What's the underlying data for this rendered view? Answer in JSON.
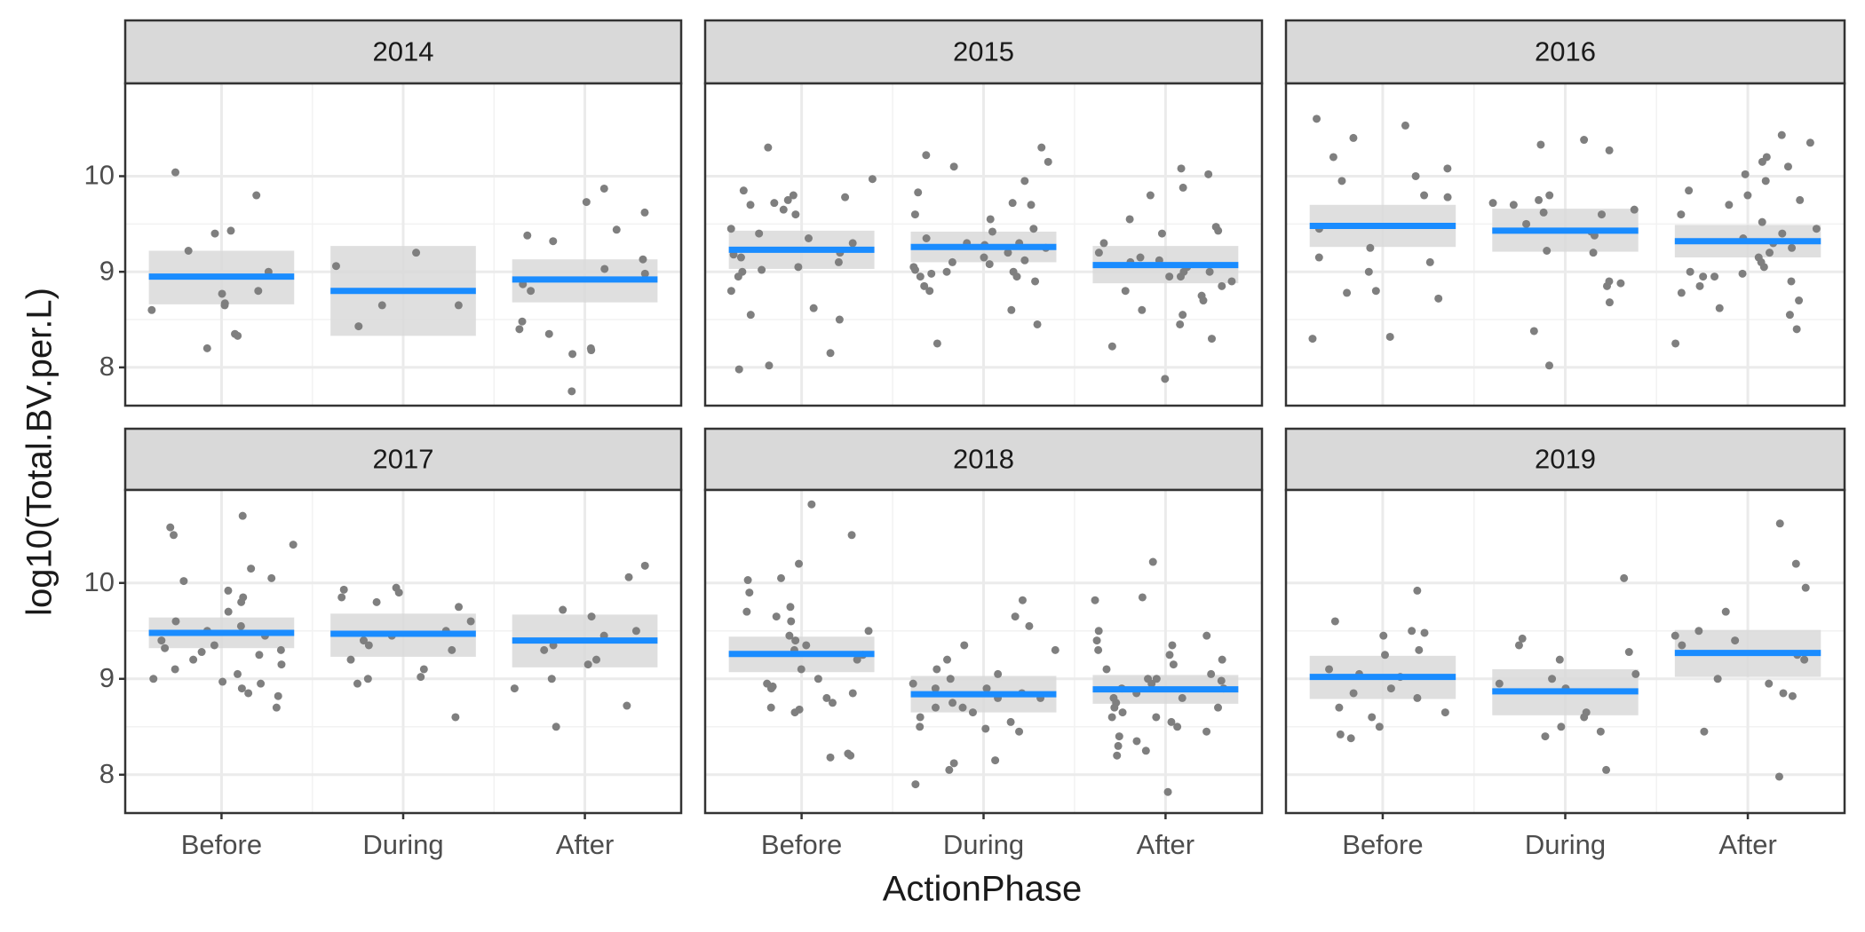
{
  "axes": {
    "xlabel": "ActionPhase",
    "ylabel": "log10(Total.BV.per.L)",
    "categories": [
      "Before",
      "During",
      "After"
    ],
    "ylim": [
      7.6,
      10.97
    ],
    "yticks": [
      8,
      9,
      10
    ],
    "point_color": "#7f7f7f",
    "line_color": "#1a8cff",
    "band_color": "#d9d9d9",
    "grid": true
  },
  "chart_data": [
    {
      "type": "scatter",
      "title": "2014",
      "points": [
        [
          10.04,
          9.8,
          9.43,
          9.4,
          9.22,
          9.0,
          8.8,
          8.77,
          8.67,
          8.65,
          8.6,
          8.35,
          8.33,
          8.2
        ],
        [
          9.2,
          9.06,
          8.65,
          8.65,
          8.43
        ],
        [
          9.87,
          9.73,
          9.62,
          9.44,
          9.38,
          9.32,
          9.13,
          9.03,
          8.98,
          8.87,
          8.8,
          8.48,
          8.4,
          8.35,
          8.2,
          8.18,
          8.14,
          7.75
        ]
      ],
      "means": [
        8.95,
        8.8,
        8.92
      ],
      "ci_low": [
        8.66,
        8.33,
        8.68
      ],
      "ci_high": [
        9.22,
        9.27,
        9.13
      ]
    },
    {
      "type": "scatter",
      "title": "2015",
      "points": [
        [
          10.3,
          9.97,
          9.85,
          9.8,
          9.78,
          9.75,
          9.72,
          9.7,
          9.65,
          9.6,
          9.45,
          9.4,
          9.35,
          9.3,
          9.2,
          9.18,
          9.15,
          9.1,
          9.05,
          9.02,
          9.0,
          8.95,
          8.8,
          8.62,
          8.55,
          8.5,
          8.15,
          8.02,
          7.98
        ],
        [
          10.3,
          10.22,
          10.15,
          10.1,
          9.83,
          9.72,
          9.7,
          9.6,
          9.55,
          9.45,
          9.42,
          9.35,
          9.3,
          9.28,
          9.25,
          9.2,
          9.15,
          9.1,
          9.05,
          9.02,
          9.0,
          8.98,
          8.95,
          8.9,
          8.85,
          8.8,
          8.6,
          8.45,
          8.25,
          9.95,
          9.12,
          9.08,
          9.0,
          8.95,
          9.3
        ],
        [
          10.08,
          10.02,
          9.88,
          9.8,
          9.55,
          9.47,
          9.43,
          9.4,
          9.3,
          9.2,
          9.15,
          9.12,
          9.05,
          9.0,
          8.95,
          8.9,
          8.85,
          8.8,
          8.75,
          8.7,
          8.6,
          8.55,
          8.45,
          8.3,
          8.22,
          7.88,
          9.1,
          9.0,
          8.95
        ]
      ],
      "means": [
        9.23,
        9.26,
        9.07
      ],
      "ci_low": [
        9.03,
        9.1,
        8.88
      ],
      "ci_high": [
        9.43,
        9.42,
        9.27
      ]
    },
    {
      "type": "scatter",
      "title": "2016",
      "points": [
        [
          10.6,
          10.53,
          10.4,
          10.2,
          10.08,
          10.0,
          9.95,
          9.8,
          9.78,
          9.45,
          9.25,
          9.15,
          9.1,
          9.0,
          8.8,
          8.78,
          8.72,
          8.32,
          8.3
        ],
        [
          10.38,
          10.33,
          10.27,
          9.8,
          9.75,
          9.72,
          9.7,
          9.65,
          9.6,
          9.5,
          9.42,
          9.38,
          9.22,
          9.2,
          8.9,
          8.88,
          8.85,
          8.68,
          8.38,
          8.02,
          9.62
        ],
        [
          10.43,
          10.35,
          10.2,
          10.15,
          10.1,
          10.02,
          9.95,
          9.85,
          9.8,
          9.75,
          9.7,
          9.6,
          9.52,
          9.45,
          9.4,
          9.35,
          9.3,
          9.25,
          9.2,
          9.15,
          9.1,
          9.0,
          8.98,
          8.95,
          8.9,
          8.85,
          8.78,
          8.7,
          8.62,
          8.55,
          8.4,
          8.25,
          9.05,
          8.95
        ]
      ],
      "means": [
        9.48,
        9.43,
        9.32
      ],
      "ci_low": [
        9.26,
        9.21,
        9.15
      ],
      "ci_high": [
        9.7,
        9.66,
        9.49
      ]
    },
    {
      "type": "scatter",
      "title": "2017",
      "points": [
        [
          10.7,
          10.58,
          10.5,
          10.4,
          10.15,
          10.05,
          10.02,
          9.92,
          9.85,
          9.8,
          9.7,
          9.6,
          9.55,
          9.5,
          9.45,
          9.4,
          9.35,
          9.3,
          9.25,
          9.2,
          9.15,
          9.1,
          9.05,
          9.0,
          8.97,
          8.95,
          8.9,
          8.85,
          8.82,
          8.7,
          9.32,
          9.28
        ],
        [
          9.95,
          9.93,
          9.9,
          9.85,
          9.8,
          9.75,
          9.6,
          9.5,
          9.45,
          9.4,
          9.35,
          9.3,
          9.2,
          9.1,
          9.02,
          9.0,
          8.95,
          8.6
        ],
        [
          10.18,
          10.06,
          9.72,
          9.65,
          9.5,
          9.45,
          9.35,
          9.3,
          9.2,
          9.15,
          9.0,
          8.9,
          8.72,
          8.5
        ]
      ],
      "means": [
        9.48,
        9.47,
        9.4
      ],
      "ci_low": [
        9.32,
        9.23,
        9.12
      ],
      "ci_high": [
        9.64,
        9.68,
        9.67
      ]
    },
    {
      "type": "scatter",
      "title": "2018",
      "points": [
        [
          10.82,
          10.5,
          10.2,
          10.05,
          10.03,
          9.9,
          9.75,
          9.7,
          9.65,
          9.6,
          9.5,
          9.45,
          9.4,
          9.35,
          9.3,
          9.25,
          9.2,
          9.1,
          9.0,
          8.95,
          8.92,
          8.9,
          8.85,
          8.8,
          8.75,
          8.7,
          8.68,
          8.65,
          8.22,
          8.2,
          8.18
        ],
        [
          9.82,
          9.65,
          9.55,
          9.35,
          9.3,
          9.2,
          9.1,
          9.05,
          9.0,
          8.95,
          8.9,
          8.85,
          8.8,
          8.75,
          8.7,
          8.65,
          8.6,
          8.55,
          8.5,
          8.48,
          8.45,
          8.15,
          8.12,
          8.05,
          7.9,
          8.9,
          8.8,
          8.7
        ],
        [
          10.22,
          9.85,
          9.82,
          9.5,
          9.45,
          9.4,
          9.35,
          9.3,
          9.25,
          9.2,
          9.15,
          9.1,
          9.05,
          9.0,
          8.98,
          8.95,
          8.9,
          8.85,
          8.8,
          8.75,
          8.7,
          8.65,
          8.6,
          8.55,
          8.5,
          8.45,
          8.4,
          8.35,
          8.3,
          8.25,
          8.2,
          7.82,
          9.0,
          8.9,
          8.8,
          8.7,
          8.6
        ]
      ],
      "means": [
        9.26,
        8.84,
        8.89
      ],
      "ci_low": [
        9.07,
        8.65,
        8.74
      ],
      "ci_high": [
        9.44,
        9.03,
        9.04
      ]
    },
    {
      "type": "scatter",
      "title": "2019",
      "points": [
        [
          9.92,
          9.6,
          9.5,
          9.48,
          9.45,
          9.3,
          9.25,
          9.1,
          9.05,
          9.02,
          8.9,
          8.85,
          8.8,
          8.7,
          8.65,
          8.6,
          8.5,
          8.42,
          8.38
        ],
        [
          10.05,
          9.42,
          9.35,
          9.28,
          9.2,
          9.05,
          9.0,
          8.95,
          8.9,
          8.65,
          8.6,
          8.5,
          8.45,
          8.4,
          8.05
        ],
        [
          10.62,
          10.2,
          9.95,
          9.7,
          9.5,
          9.45,
          9.4,
          9.35,
          9.25,
          9.2,
          9.0,
          8.95,
          8.85,
          8.82,
          8.45,
          7.98
        ]
      ],
      "means": [
        9.02,
        8.87,
        9.27
      ],
      "ci_low": [
        8.79,
        8.62,
        9.02
      ],
      "ci_high": [
        9.24,
        9.1,
        9.51
      ]
    }
  ]
}
